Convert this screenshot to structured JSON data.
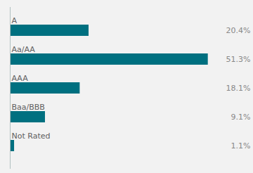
{
  "chart_data": {
    "type": "bar",
    "orientation": "horizontal",
    "categories": [
      "A",
      "Aa/AA",
      "AAA",
      "Baa/BBB",
      "Not Rated"
    ],
    "values": [
      20.4,
      51.3,
      18.1,
      9.1,
      1.1
    ],
    "value_labels": [
      "20.4%",
      "51.3%",
      "18.1%",
      "9.1%",
      "1.1%"
    ],
    "data_labels": true,
    "color": "#007080",
    "xlim": [
      0,
      55
    ],
    "tick_labels": false,
    "grid": false
  }
}
